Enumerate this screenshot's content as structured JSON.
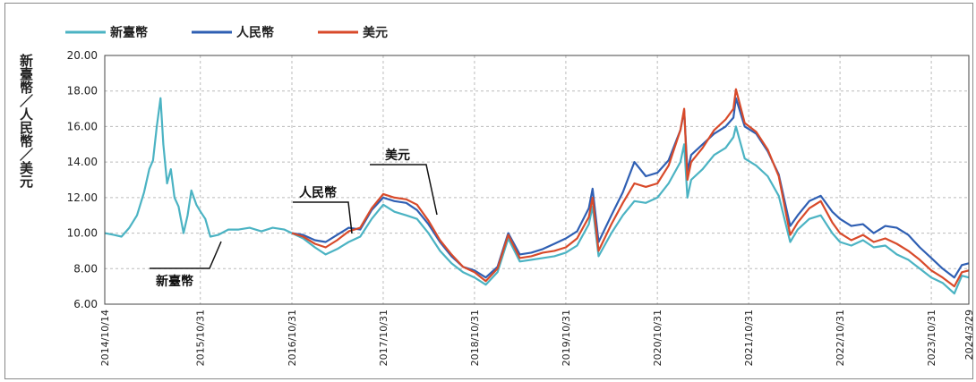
{
  "chart_data": {
    "type": "line",
    "title": "",
    "ylabel": "新臺幣／人民幣／美元",
    "ylim": [
      6,
      20
    ],
    "yticks": [
      "6.00",
      "8.00",
      "10.00",
      "12.00",
      "14.00",
      "16.00",
      "18.00",
      "20.00"
    ],
    "xticks": [
      "2014/10/14",
      "2015/10/31",
      "2016/10/31",
      "2017/10/31",
      "2018/10/31",
      "2019/10/31",
      "2020/10/31",
      "2021/10/31",
      "2022/10/31",
      "2023/10/31",
      "2024/3/29"
    ],
    "grid": true,
    "legend_position": "top-left",
    "annotations": [
      "美元",
      "人民幣",
      "新臺幣"
    ],
    "series": [
      {
        "name": "新臺幣",
        "color": "#4bb3c3",
        "points": [
          [
            "2014-10-14",
            10.0
          ],
          [
            "2014-11-20",
            9.9
          ],
          [
            "2014-12-20",
            9.8
          ],
          [
            "2015-01-20",
            10.3
          ],
          [
            "2015-02-20",
            11.0
          ],
          [
            "2015-03-20",
            12.3
          ],
          [
            "2015-04-10",
            13.6
          ],
          [
            "2015-04-25",
            14.1
          ],
          [
            "2015-05-10",
            16.0
          ],
          [
            "2015-05-25",
            17.6
          ],
          [
            "2015-06-05",
            15.0
          ],
          [
            "2015-06-20",
            12.8
          ],
          [
            "2015-07-05",
            13.6
          ],
          [
            "2015-07-20",
            12.0
          ],
          [
            "2015-08-05",
            11.5
          ],
          [
            "2015-08-25",
            10.0
          ],
          [
            "2015-09-10",
            11.0
          ],
          [
            "2015-09-25",
            12.4
          ],
          [
            "2015-10-15",
            11.6
          ],
          [
            "2015-11-01",
            11.2
          ],
          [
            "2015-11-20",
            10.8
          ],
          [
            "2015-12-10",
            9.8
          ],
          [
            "2016-01-10",
            9.9
          ],
          [
            "2016-02-20",
            10.2
          ],
          [
            "2016-04-01",
            10.2
          ],
          [
            "2016-05-15",
            10.3
          ],
          [
            "2016-07-01",
            10.1
          ],
          [
            "2016-08-15",
            10.3
          ],
          [
            "2016-10-01",
            10.2
          ],
          [
            "2016-10-31",
            10.0
          ],
          [
            "2016-12-15",
            9.7
          ],
          [
            "2017-01-31",
            9.2
          ],
          [
            "2017-03-15",
            8.8
          ],
          [
            "2017-04-30",
            9.1
          ],
          [
            "2017-06-15",
            9.5
          ],
          [
            "2017-07-31",
            9.8
          ],
          [
            "2017-09-15",
            10.8
          ],
          [
            "2017-10-31",
            11.6
          ],
          [
            "2017-12-15",
            11.2
          ],
          [
            "2018-01-31",
            11.0
          ],
          [
            "2018-03-15",
            10.8
          ],
          [
            "2018-04-30",
            10.0
          ],
          [
            "2018-06-15",
            9.0
          ],
          [
            "2018-07-31",
            8.3
          ],
          [
            "2018-09-15",
            7.8
          ],
          [
            "2018-10-31",
            7.5
          ],
          [
            "2018-12-15",
            7.1
          ],
          [
            "2019-01-31",
            7.8
          ],
          [
            "2019-03-15",
            9.7
          ],
          [
            "2019-04-30",
            8.4
          ],
          [
            "2019-06-15",
            8.5
          ],
          [
            "2019-07-31",
            8.6
          ],
          [
            "2019-09-15",
            8.7
          ],
          [
            "2019-10-31",
            8.9
          ],
          [
            "2019-12-15",
            9.3
          ],
          [
            "2020-01-31",
            10.5
          ],
          [
            "2020-02-15",
            11.5
          ],
          [
            "2020-03-10",
            8.7
          ],
          [
            "2020-04-30",
            10.0
          ],
          [
            "2020-06-15",
            11.0
          ],
          [
            "2020-07-31",
            11.8
          ],
          [
            "2020-09-15",
            11.7
          ],
          [
            "2020-10-31",
            12.0
          ],
          [
            "2020-12-15",
            12.8
          ],
          [
            "2021-01-31",
            14.0
          ],
          [
            "2021-02-15",
            15.0
          ],
          [
            "2021-02-28",
            12.0
          ],
          [
            "2021-03-15",
            13.0
          ],
          [
            "2021-04-30",
            13.6
          ],
          [
            "2021-06-15",
            14.4
          ],
          [
            "2021-07-31",
            14.8
          ],
          [
            "2021-08-31",
            15.4
          ],
          [
            "2021-09-10",
            16.0
          ],
          [
            "2021-10-15",
            14.2
          ],
          [
            "2021-11-30",
            13.8
          ],
          [
            "2022-01-15",
            13.2
          ],
          [
            "2022-02-28",
            12.1
          ],
          [
            "2022-04-15",
            9.5
          ],
          [
            "2022-05-15",
            10.2
          ],
          [
            "2022-06-30",
            10.8
          ],
          [
            "2022-08-15",
            11.0
          ],
          [
            "2022-09-30",
            10.0
          ],
          [
            "2022-10-31",
            9.5
          ],
          [
            "2022-12-15",
            9.3
          ],
          [
            "2023-01-31",
            9.6
          ],
          [
            "2023-03-15",
            9.2
          ],
          [
            "2023-04-30",
            9.3
          ],
          [
            "2023-06-15",
            8.8
          ],
          [
            "2023-07-31",
            8.5
          ],
          [
            "2023-09-15",
            8.0
          ],
          [
            "2023-10-31",
            7.5
          ],
          [
            "2023-12-15",
            7.2
          ],
          [
            "2024-01-31",
            6.6
          ],
          [
            "2024-03-01",
            7.6
          ],
          [
            "2024-03-29",
            7.5
          ]
        ]
      },
      {
        "name": "人民幣",
        "color": "#2f5fb3",
        "points": [
          [
            "2016-10-31",
            10.0
          ],
          [
            "2016-12-15",
            9.9
          ],
          [
            "2017-01-31",
            9.6
          ],
          [
            "2017-03-15",
            9.5
          ],
          [
            "2017-04-30",
            9.9
          ],
          [
            "2017-06-15",
            10.3
          ],
          [
            "2017-07-31",
            10.2
          ],
          [
            "2017-09-15",
            11.3
          ],
          [
            "2017-10-31",
            12.0
          ],
          [
            "2017-12-15",
            11.8
          ],
          [
            "2018-01-31",
            11.7
          ],
          [
            "2018-03-15",
            11.3
          ],
          [
            "2018-04-30",
            10.5
          ],
          [
            "2018-06-15",
            9.5
          ],
          [
            "2018-07-31",
            8.7
          ],
          [
            "2018-09-15",
            8.1
          ],
          [
            "2018-10-31",
            7.9
          ],
          [
            "2018-12-15",
            7.5
          ],
          [
            "2019-01-31",
            8.1
          ],
          [
            "2019-03-15",
            10.0
          ],
          [
            "2019-04-30",
            8.8
          ],
          [
            "2019-06-15",
            8.9
          ],
          [
            "2019-07-31",
            9.1
          ],
          [
            "2019-09-15",
            9.4
          ],
          [
            "2019-10-31",
            9.7
          ],
          [
            "2019-12-15",
            10.1
          ],
          [
            "2020-01-31",
            11.4
          ],
          [
            "2020-02-15",
            12.5
          ],
          [
            "2020-03-10",
            9.5
          ],
          [
            "2020-04-30",
            11.0
          ],
          [
            "2020-06-15",
            12.3
          ],
          [
            "2020-07-31",
            14.0
          ],
          [
            "2020-09-15",
            13.2
          ],
          [
            "2020-10-31",
            13.4
          ],
          [
            "2020-12-15",
            14.1
          ],
          [
            "2021-01-31",
            15.8
          ],
          [
            "2021-02-15",
            16.9
          ],
          [
            "2021-02-28",
            13.5
          ],
          [
            "2021-03-15",
            14.4
          ],
          [
            "2021-04-30",
            15.0
          ],
          [
            "2021-06-15",
            15.6
          ],
          [
            "2021-07-31",
            16.0
          ],
          [
            "2021-08-31",
            16.5
          ],
          [
            "2021-09-10",
            17.6
          ],
          [
            "2021-10-15",
            16.0
          ],
          [
            "2021-11-30",
            15.6
          ],
          [
            "2022-01-15",
            14.6
          ],
          [
            "2022-02-28",
            13.3
          ],
          [
            "2022-04-15",
            10.4
          ],
          [
            "2022-05-15",
            11.0
          ],
          [
            "2022-06-30",
            11.8
          ],
          [
            "2022-08-15",
            12.1
          ],
          [
            "2022-09-30",
            11.2
          ],
          [
            "2022-10-31",
            10.8
          ],
          [
            "2022-12-15",
            10.4
          ],
          [
            "2023-01-31",
            10.5
          ],
          [
            "2023-03-15",
            10.0
          ],
          [
            "2023-04-30",
            10.4
          ],
          [
            "2023-06-15",
            10.3
          ],
          [
            "2023-07-31",
            9.9
          ],
          [
            "2023-09-15",
            9.2
          ],
          [
            "2023-10-31",
            8.6
          ],
          [
            "2023-12-15",
            8.0
          ],
          [
            "2024-01-31",
            7.5
          ],
          [
            "2024-03-01",
            8.2
          ],
          [
            "2024-03-29",
            8.3
          ]
        ]
      },
      {
        "name": "美元",
        "color": "#d84a2a",
        "points": [
          [
            "2016-10-31",
            10.0
          ],
          [
            "2016-12-15",
            9.8
          ],
          [
            "2017-01-31",
            9.4
          ],
          [
            "2017-03-15",
            9.2
          ],
          [
            "2017-04-30",
            9.6
          ],
          [
            "2017-06-15",
            10.1
          ],
          [
            "2017-07-31",
            10.3
          ],
          [
            "2017-09-15",
            11.4
          ],
          [
            "2017-10-31",
            12.2
          ],
          [
            "2017-12-15",
            12.0
          ],
          [
            "2018-01-31",
            11.9
          ],
          [
            "2018-03-15",
            11.6
          ],
          [
            "2018-04-30",
            10.7
          ],
          [
            "2018-06-15",
            9.6
          ],
          [
            "2018-07-31",
            8.8
          ],
          [
            "2018-09-15",
            8.1
          ],
          [
            "2018-10-31",
            7.8
          ],
          [
            "2018-12-15",
            7.3
          ],
          [
            "2019-01-31",
            8.0
          ],
          [
            "2019-03-15",
            9.9
          ],
          [
            "2019-04-30",
            8.6
          ],
          [
            "2019-06-15",
            8.7
          ],
          [
            "2019-07-31",
            8.9
          ],
          [
            "2019-09-15",
            9.0
          ],
          [
            "2019-10-31",
            9.2
          ],
          [
            "2019-12-15",
            9.7
          ],
          [
            "2020-01-31",
            10.9
          ],
          [
            "2020-02-15",
            12.0
          ],
          [
            "2020-03-10",
            9.0
          ],
          [
            "2020-04-30",
            10.5
          ],
          [
            "2020-06-15",
            11.7
          ],
          [
            "2020-07-31",
            12.8
          ],
          [
            "2020-09-15",
            12.6
          ],
          [
            "2020-10-31",
            12.8
          ],
          [
            "2020-12-15",
            13.8
          ],
          [
            "2021-01-31",
            15.8
          ],
          [
            "2021-02-15",
            17.0
          ],
          [
            "2021-02-28",
            13.0
          ],
          [
            "2021-03-15",
            14.0
          ],
          [
            "2021-04-30",
            14.8
          ],
          [
            "2021-06-15",
            15.8
          ],
          [
            "2021-07-31",
            16.4
          ],
          [
            "2021-08-31",
            17.0
          ],
          [
            "2021-09-10",
            18.1
          ],
          [
            "2021-10-15",
            16.2
          ],
          [
            "2021-11-30",
            15.7
          ],
          [
            "2022-01-15",
            14.7
          ],
          [
            "2022-02-28",
            13.2
          ],
          [
            "2022-04-15",
            9.9
          ],
          [
            "2022-05-15",
            10.6
          ],
          [
            "2022-06-30",
            11.4
          ],
          [
            "2022-08-15",
            11.8
          ],
          [
            "2022-09-30",
            10.6
          ],
          [
            "2022-10-31",
            10.0
          ],
          [
            "2022-12-15",
            9.6
          ],
          [
            "2023-01-31",
            9.9
          ],
          [
            "2023-03-15",
            9.5
          ],
          [
            "2023-04-30",
            9.7
          ],
          [
            "2023-06-15",
            9.4
          ],
          [
            "2023-07-31",
            9.0
          ],
          [
            "2023-09-15",
            8.5
          ],
          [
            "2023-10-31",
            7.9
          ],
          [
            "2023-12-15",
            7.5
          ],
          [
            "2024-01-31",
            7.0
          ],
          [
            "2024-03-01",
            7.8
          ],
          [
            "2024-03-29",
            7.9
          ]
        ]
      }
    ]
  }
}
